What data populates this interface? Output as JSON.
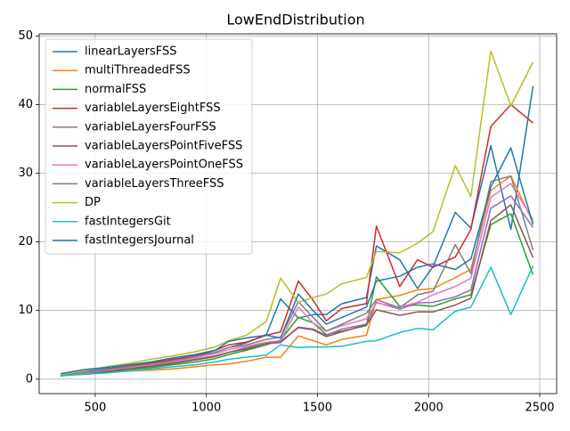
{
  "chart_data": {
    "type": "line",
    "title": "LowEndDistribution",
    "x": [
      345,
      450,
      550,
      650,
      750,
      850,
      950,
      1040,
      1100,
      1180,
      1270,
      1334,
      1414,
      1480,
      1540,
      1610,
      1720,
      1765,
      1870,
      1950,
      2020,
      2120,
      2190,
      2280,
      2370,
      2470
    ],
    "xlim": [
      248,
      2576
    ],
    "xticks": [
      500,
      1000,
      1500,
      2000,
      2500
    ],
    "ylim": [
      -2.1,
      50.3
    ],
    "yticks": [
      0,
      10,
      20,
      30,
      40,
      50
    ],
    "grid": true,
    "legend": "upper left",
    "series": [
      {
        "name": "linearLayersFSS",
        "color": "#1f77b4",
        "values": [
          0.7,
          1.1,
          1.5,
          1.9,
          2.4,
          2.8,
          3.4,
          3.9,
          4.6,
          5.3,
          6.5,
          11.7,
          8.9,
          9.4,
          9.4,
          11.0,
          11.9,
          19.4,
          17.4,
          13.2,
          16.4,
          24.3,
          22.0,
          34.0,
          21.8,
          42.7
        ]
      },
      {
        "name": "multiThreadedFSS",
        "color": "#ff7f0e",
        "values": [
          0.6,
          0.8,
          1.0,
          1.2,
          1.3,
          1.5,
          1.8,
          2.1,
          2.2,
          2.6,
          3.2,
          3.2,
          6.3,
          5.6,
          5.0,
          5.8,
          6.4,
          11.6,
          12.2,
          13.0,
          13.2,
          14.8,
          16.0,
          27.5,
          29.6,
          22.8
        ]
      },
      {
        "name": "normalFSS",
        "color": "#2ca02c",
        "values": [
          0.5,
          0.8,
          1.1,
          1.4,
          1.7,
          2.1,
          2.5,
          3.0,
          3.6,
          4.2,
          5.0,
          5.7,
          9.0,
          8.2,
          6.5,
          7.0,
          7.8,
          14.9,
          10.6,
          10.8,
          10.6,
          11.7,
          12.3,
          22.5,
          24.1,
          15.2
        ]
      },
      {
        "name": "variableLayersEightFSS",
        "color": "#d62728",
        "values": [
          0.5,
          0.9,
          1.4,
          1.9,
          2.4,
          2.9,
          3.4,
          4.2,
          5.0,
          5.4,
          6.4,
          6.9,
          14.3,
          11.5,
          8.5,
          10.3,
          11.0,
          22.3,
          13.5,
          17.4,
          16.3,
          17.8,
          21.8,
          36.8,
          40.0,
          37.3
        ]
      },
      {
        "name": "variableLayersFourFSS",
        "color": "#9467bd",
        "values": [
          0.5,
          0.9,
          1.2,
          1.6,
          2.0,
          2.4,
          2.9,
          3.4,
          3.9,
          4.6,
          5.2,
          5.3,
          7.6,
          7.3,
          6.4,
          7.3,
          8.0,
          11.2,
          10.2,
          11.1,
          11.2,
          12.0,
          13.0,
          24.9,
          26.7,
          22.1
        ]
      },
      {
        "name": "variableLayersPointFiveFSS",
        "color": "#8c564b",
        "values": [
          0.5,
          0.8,
          1.1,
          1.5,
          1.9,
          2.3,
          2.8,
          3.3,
          3.9,
          4.4,
          5.2,
          5.5,
          7.5,
          7.2,
          6.2,
          6.9,
          7.9,
          10.1,
          9.3,
          9.8,
          9.8,
          10.8,
          11.8,
          23.1,
          25.4,
          17.7
        ]
      },
      {
        "name": "variableLayersPointOneFSS",
        "color": "#e377c2",
        "values": [
          0.5,
          0.9,
          1.3,
          1.7,
          2.1,
          2.6,
          3.1,
          3.7,
          4.3,
          4.8,
          5.4,
          5.6,
          10.5,
          8.2,
          7.0,
          7.8,
          8.8,
          11.1,
          10.5,
          11.2,
          12.3,
          13.5,
          14.7,
          26.5,
          28.5,
          23.2
        ]
      },
      {
        "name": "variableLayersThreeFSS",
        "color": "#7f7f7f",
        "values": [
          0.6,
          1.0,
          1.4,
          1.8,
          2.2,
          2.7,
          3.3,
          3.9,
          4.6,
          5.0,
          5.8,
          6.1,
          11.3,
          9.0,
          7.0,
          8.0,
          9.6,
          11.6,
          10.4,
          12.3,
          12.8,
          19.6,
          15.4,
          28.8,
          29.6,
          18.8
        ]
      },
      {
        "name": "DP",
        "color": "#bcbd22",
        "values": [
          0.7,
          1.2,
          1.8,
          2.3,
          2.9,
          3.4,
          4.0,
          4.7,
          5.6,
          6.4,
          8.4,
          14.7,
          11.2,
          11.9,
          12.4,
          13.9,
          14.8,
          18.6,
          18.4,
          19.8,
          21.5,
          31.1,
          26.6,
          47.8,
          39.8,
          46.2
        ]
      },
      {
        "name": "fastIntegersGit",
        "color": "#17becf",
        "values": [
          0.5,
          0.7,
          0.9,
          1.2,
          1.5,
          1.8,
          2.1,
          2.5,
          2.9,
          3.2,
          3.5,
          5.0,
          4.6,
          4.7,
          4.7,
          4.8,
          5.5,
          5.6,
          6.8,
          7.4,
          7.2,
          9.9,
          10.5,
          16.3,
          9.4,
          16.5
        ]
      },
      {
        "name": "fastIntegersJournal",
        "color": "#1f77b4",
        "values": [
          0.8,
          1.4,
          1.7,
          2.1,
          2.5,
          3.1,
          3.6,
          4.2,
          5.5,
          6.0,
          6.4,
          6.0,
          12.4,
          10.0,
          8.0,
          9.0,
          10.5,
          14.3,
          15.0,
          16.3,
          16.8,
          16.0,
          17.5,
          28.0,
          33.7,
          22.5
        ]
      }
    ]
  }
}
